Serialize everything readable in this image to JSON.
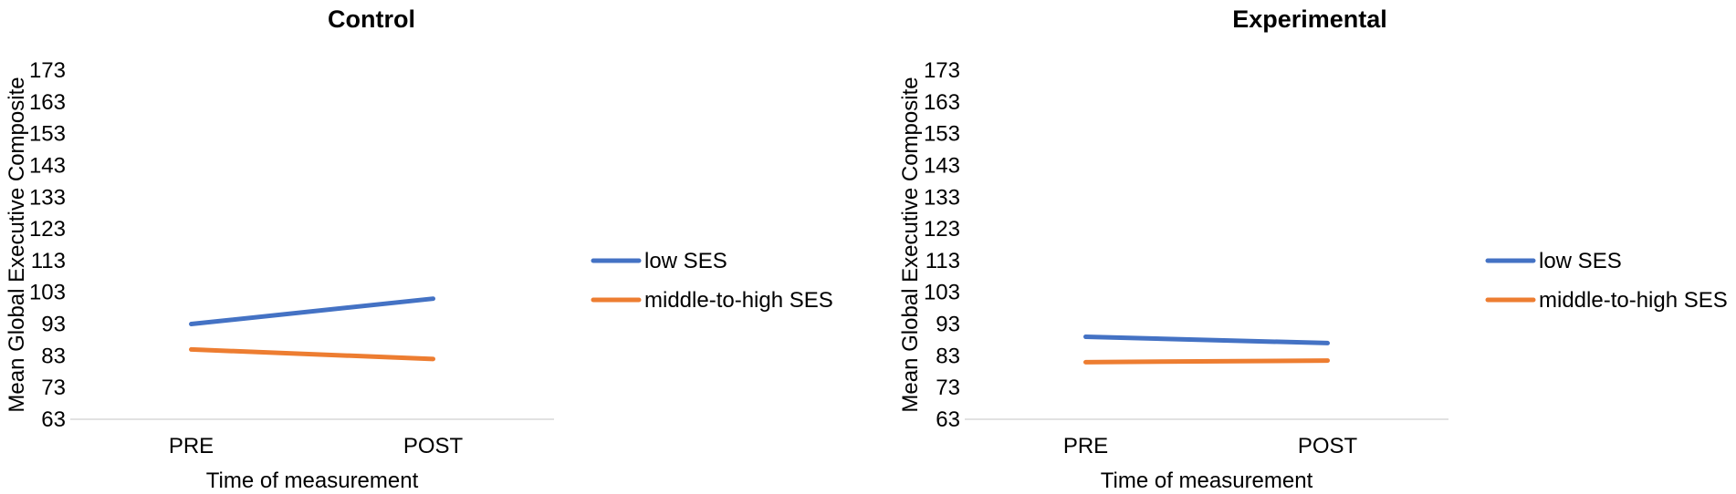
{
  "chart_data": [
    {
      "type": "line",
      "title": "Control",
      "xlabel": "Time of measurement",
      "ylabel": "Mean Global Executive Composite",
      "categories": [
        "PRE",
        "POST"
      ],
      "yticks": [
        63,
        73,
        83,
        93,
        103,
        113,
        123,
        133,
        143,
        153,
        163,
        173
      ],
      "ylim": [
        63,
        173
      ],
      "grid": false,
      "legend_position": "right",
      "series": [
        {
          "name": "low SES",
          "color": "#4472C4",
          "values": [
            93,
            101
          ]
        },
        {
          "name": "middle-to-high SES",
          "color": "#ED7D31",
          "values": [
            85,
            82
          ]
        }
      ]
    },
    {
      "type": "line",
      "title": "Experimental",
      "xlabel": "Time of measurement",
      "ylabel": "Mean Global Executive Composite",
      "categories": [
        "PRE",
        "POST"
      ],
      "yticks": [
        63,
        73,
        83,
        93,
        103,
        113,
        123,
        133,
        143,
        153,
        163,
        173
      ],
      "ylim": [
        63,
        173
      ],
      "grid": false,
      "legend_position": "right",
      "series": [
        {
          "name": "low SES",
          "color": "#4472C4",
          "values": [
            89,
            87
          ]
        },
        {
          "name": "middle-to-high SES",
          "color": "#ED7D31",
          "values": [
            81,
            81.5
          ]
        }
      ]
    }
  ]
}
